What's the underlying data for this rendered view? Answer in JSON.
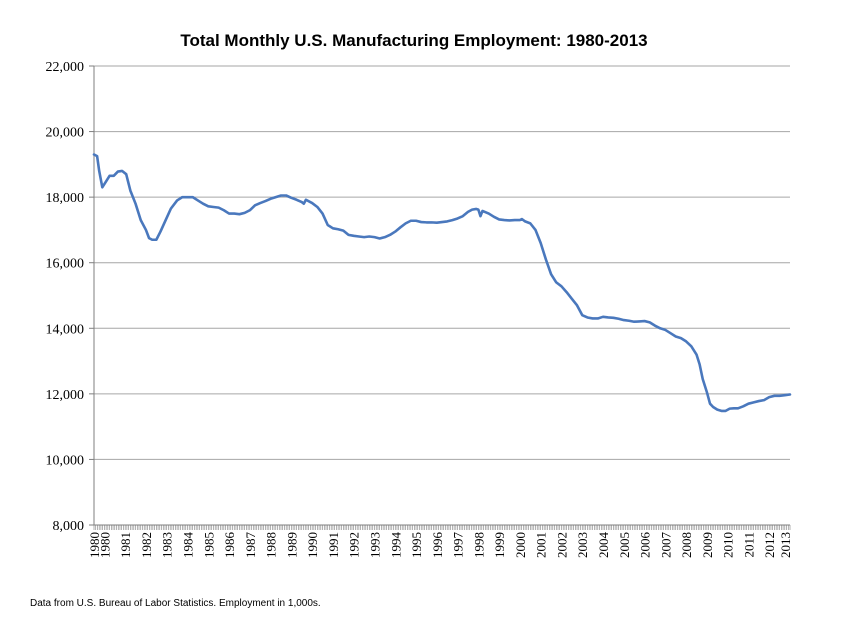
{
  "chart_data": {
    "type": "line",
    "title": "Total Monthly U.S. Manufacturing Employment: 1980-2013",
    "xlabel": "",
    "ylabel": "",
    "ylim": [
      8000,
      22000
    ],
    "xlim": [
      1980.0,
      2013.5
    ],
    "grid": true,
    "legend": "none",
    "y_ticks": [
      {
        "value": 8000,
        "label": "8,000"
      },
      {
        "value": 10000,
        "label": "10,000"
      },
      {
        "value": 12000,
        "label": "12,000"
      },
      {
        "value": 14000,
        "label": "14,000"
      },
      {
        "value": 16000,
        "label": "16,000"
      },
      {
        "value": 18000,
        "label": "18,000"
      },
      {
        "value": 20000,
        "label": "20,000"
      },
      {
        "value": 22000,
        "label": "22,000"
      }
    ],
    "x_ticks": [
      {
        "value": 1980.0,
        "label": "1980"
      },
      {
        "value": 1980.5,
        "label": "1980"
      },
      {
        "value": 1981.5,
        "label": "1981"
      },
      {
        "value": 1982.5,
        "label": "1982"
      },
      {
        "value": 1983.5,
        "label": "1983"
      },
      {
        "value": 1984.5,
        "label": "1984"
      },
      {
        "value": 1985.5,
        "label": "1985"
      },
      {
        "value": 1986.5,
        "label": "1986"
      },
      {
        "value": 1987.5,
        "label": "1987"
      },
      {
        "value": 1988.5,
        "label": "1988"
      },
      {
        "value": 1989.5,
        "label": "1989"
      },
      {
        "value": 1990.5,
        "label": "1990"
      },
      {
        "value": 1991.5,
        "label": "1991"
      },
      {
        "value": 1992.5,
        "label": "1992"
      },
      {
        "value": 1993.5,
        "label": "1993"
      },
      {
        "value": 1994.5,
        "label": "1994"
      },
      {
        "value": 1995.5,
        "label": "1995"
      },
      {
        "value": 1996.5,
        "label": "1996"
      },
      {
        "value": 1997.5,
        "label": "1997"
      },
      {
        "value": 1998.5,
        "label": "1998"
      },
      {
        "value": 1999.5,
        "label": "1999"
      },
      {
        "value": 2000.5,
        "label": "2000"
      },
      {
        "value": 2001.5,
        "label": "2001"
      },
      {
        "value": 2002.5,
        "label": "2002"
      },
      {
        "value": 2003.5,
        "label": "2003"
      },
      {
        "value": 2004.5,
        "label": "2004"
      },
      {
        "value": 2005.5,
        "label": "2005"
      },
      {
        "value": 2006.5,
        "label": "2006"
      },
      {
        "value": 2007.5,
        "label": "2007"
      },
      {
        "value": 2008.5,
        "label": "2008"
      },
      {
        "value": 2009.5,
        "label": "2009"
      },
      {
        "value": 2010.5,
        "label": "2010"
      },
      {
        "value": 2011.5,
        "label": "2011"
      },
      {
        "value": 2012.5,
        "label": "2012"
      },
      {
        "value": 2013.25,
        "label": "2013"
      }
    ],
    "series": [
      {
        "color": "#4a78bd",
        "points": [
          [
            1980.0,
            19300
          ],
          [
            1980.15,
            19250
          ],
          [
            1980.25,
            18800
          ],
          [
            1980.4,
            18300
          ],
          [
            1980.55,
            18450
          ],
          [
            1980.75,
            18650
          ],
          [
            1980.95,
            18650
          ],
          [
            1981.15,
            18780
          ],
          [
            1981.35,
            18800
          ],
          [
            1981.55,
            18700
          ],
          [
            1981.75,
            18200
          ],
          [
            1982.0,
            17800
          ],
          [
            1982.25,
            17300
          ],
          [
            1982.5,
            17000
          ],
          [
            1982.65,
            16750
          ],
          [
            1982.8,
            16700
          ],
          [
            1983.0,
            16700
          ],
          [
            1983.2,
            16950
          ],
          [
            1983.45,
            17300
          ],
          [
            1983.7,
            17650
          ],
          [
            1984.0,
            17900
          ],
          [
            1984.25,
            18000
          ],
          [
            1984.5,
            18000
          ],
          [
            1984.75,
            18000
          ],
          [
            1985.0,
            17900
          ],
          [
            1985.25,
            17800
          ],
          [
            1985.5,
            17720
          ],
          [
            1985.75,
            17700
          ],
          [
            1986.0,
            17680
          ],
          [
            1986.25,
            17600
          ],
          [
            1986.5,
            17500
          ],
          [
            1986.75,
            17500
          ],
          [
            1987.0,
            17480
          ],
          [
            1987.25,
            17520
          ],
          [
            1987.5,
            17600
          ],
          [
            1987.75,
            17750
          ],
          [
            1988.0,
            17820
          ],
          [
            1988.25,
            17880
          ],
          [
            1988.5,
            17950
          ],
          [
            1988.75,
            18000
          ],
          [
            1989.0,
            18050
          ],
          [
            1989.25,
            18050
          ],
          [
            1989.5,
            17980
          ],
          [
            1989.75,
            17920
          ],
          [
            1990.0,
            17850
          ],
          [
            1990.1,
            17800
          ],
          [
            1990.2,
            17920
          ],
          [
            1990.5,
            17820
          ],
          [
            1990.75,
            17700
          ],
          [
            1991.0,
            17500
          ],
          [
            1991.25,
            17150
          ],
          [
            1991.5,
            17050
          ],
          [
            1991.75,
            17020
          ],
          [
            1992.0,
            16980
          ],
          [
            1992.25,
            16850
          ],
          [
            1992.5,
            16820
          ],
          [
            1992.75,
            16800
          ],
          [
            1993.0,
            16780
          ],
          [
            1993.25,
            16800
          ],
          [
            1993.5,
            16780
          ],
          [
            1993.75,
            16740
          ],
          [
            1994.0,
            16780
          ],
          [
            1994.25,
            16850
          ],
          [
            1994.5,
            16950
          ],
          [
            1994.75,
            17080
          ],
          [
            1995.0,
            17200
          ],
          [
            1995.25,
            17280
          ],
          [
            1995.5,
            17280
          ],
          [
            1995.75,
            17240
          ],
          [
            1996.0,
            17230
          ],
          [
            1996.25,
            17230
          ],
          [
            1996.5,
            17220
          ],
          [
            1996.75,
            17240
          ],
          [
            1997.0,
            17260
          ],
          [
            1997.25,
            17300
          ],
          [
            1997.5,
            17350
          ],
          [
            1997.75,
            17420
          ],
          [
            1998.0,
            17550
          ],
          [
            1998.2,
            17620
          ],
          [
            1998.4,
            17640
          ],
          [
            1998.5,
            17620
          ],
          [
            1998.6,
            17420
          ],
          [
            1998.7,
            17580
          ],
          [
            1999.0,
            17500
          ],
          [
            1999.25,
            17400
          ],
          [
            1999.5,
            17320
          ],
          [
            1999.75,
            17300
          ],
          [
            2000.0,
            17290
          ],
          [
            2000.25,
            17300
          ],
          [
            2000.5,
            17300
          ],
          [
            2000.6,
            17330
          ],
          [
            2000.75,
            17260
          ],
          [
            2001.0,
            17200
          ],
          [
            2001.25,
            17000
          ],
          [
            2001.5,
            16600
          ],
          [
            2001.75,
            16100
          ],
          [
            2002.0,
            15650
          ],
          [
            2002.25,
            15400
          ],
          [
            2002.5,
            15280
          ],
          [
            2002.75,
            15100
          ],
          [
            2003.0,
            14900
          ],
          [
            2003.25,
            14700
          ],
          [
            2003.5,
            14400
          ],
          [
            2003.75,
            14330
          ],
          [
            2004.0,
            14300
          ],
          [
            2004.25,
            14300
          ],
          [
            2004.5,
            14350
          ],
          [
            2004.75,
            14330
          ],
          [
            2005.0,
            14320
          ],
          [
            2005.25,
            14290
          ],
          [
            2005.5,
            14250
          ],
          [
            2005.75,
            14230
          ],
          [
            2006.0,
            14200
          ],
          [
            2006.25,
            14210
          ],
          [
            2006.5,
            14220
          ],
          [
            2006.75,
            14180
          ],
          [
            2007.0,
            14080
          ],
          [
            2007.25,
            14000
          ],
          [
            2007.5,
            13950
          ],
          [
            2007.75,
            13850
          ],
          [
            2008.0,
            13750
          ],
          [
            2008.25,
            13700
          ],
          [
            2008.5,
            13600
          ],
          [
            2008.75,
            13450
          ],
          [
            2009.0,
            13200
          ],
          [
            2009.15,
            12900
          ],
          [
            2009.3,
            12450
          ],
          [
            2009.5,
            12050
          ],
          [
            2009.65,
            11700
          ],
          [
            2009.8,
            11600
          ],
          [
            2010.0,
            11520
          ],
          [
            2010.2,
            11480
          ],
          [
            2010.4,
            11480
          ],
          [
            2010.6,
            11550
          ],
          [
            2010.8,
            11560
          ],
          [
            2011.0,
            11560
          ],
          [
            2011.25,
            11620
          ],
          [
            2011.5,
            11700
          ],
          [
            2011.75,
            11740
          ],
          [
            2012.0,
            11780
          ],
          [
            2012.25,
            11810
          ],
          [
            2012.5,
            11900
          ],
          [
            2012.75,
            11940
          ],
          [
            2013.0,
            11940
          ],
          [
            2013.25,
            11960
          ],
          [
            2013.5,
            11980
          ]
        ]
      }
    ]
  },
  "footnote": "Data from U.S. Bureau of Labor Statistics.  Employment in 1,000s."
}
